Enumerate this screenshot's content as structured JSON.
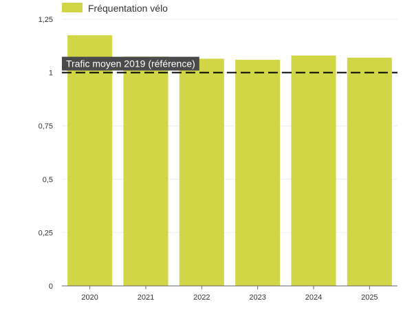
{
  "chart_data": {
    "type": "bar",
    "categories": [
      "2020",
      "2021",
      "2022",
      "2023",
      "2024",
      "2025"
    ],
    "series": [
      {
        "name": "Fréquentation vélo",
        "values": [
          1.175,
          1.075,
          1.065,
          1.06,
          1.08,
          1.07
        ]
      }
    ],
    "ylim": [
      0,
      1.25
    ],
    "yticks": [
      "0",
      "0,25",
      "0,5",
      "0,75",
      "1",
      "1,25"
    ],
    "ytick_values": [
      0,
      0.25,
      0.5,
      0.75,
      1,
      1.25
    ],
    "reference_line": {
      "value": 1,
      "label": "Trafic moyen 2019 (référence)",
      "style": "dashed"
    },
    "legend": {
      "position": "top-left"
    },
    "grid": true,
    "colors": {
      "bar": "#d1d647",
      "reference": "#000000",
      "label_bg": "#4a4a4a",
      "label_text": "#ffffff",
      "grid": "#eeeeee"
    }
  }
}
